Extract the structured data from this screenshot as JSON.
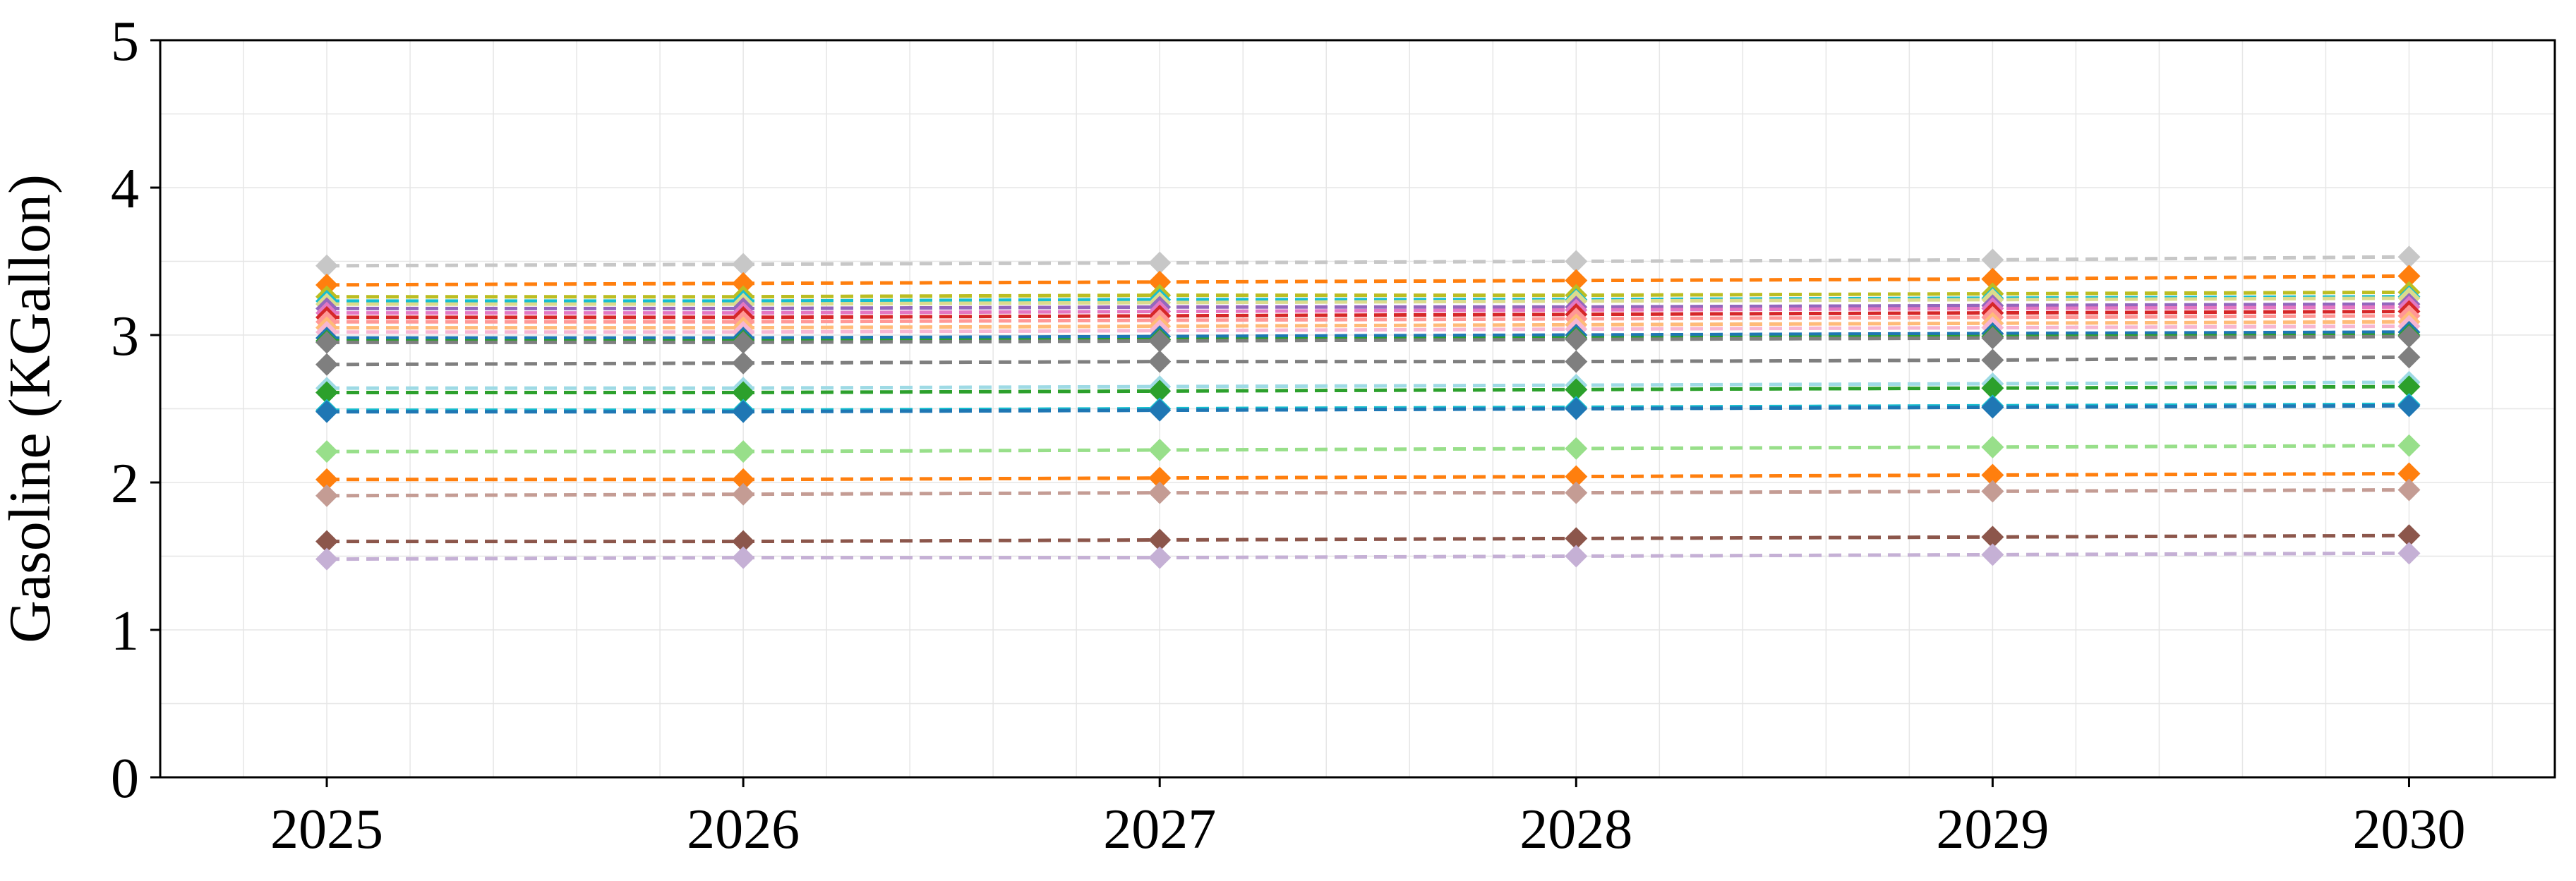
{
  "chart_data": {
    "type": "line",
    "title": "",
    "xlabel": "",
    "ylabel": "Gasoline (KGallon)",
    "x": [
      2025,
      2026,
      2027,
      2028,
      2029,
      2030
    ],
    "xlim": [
      2024.6,
      2030.35
    ],
    "ylim": [
      0,
      5
    ],
    "x_ticks": [
      "2025",
      "2026",
      "2027",
      "2028",
      "2029",
      "2030"
    ],
    "y_ticks": [
      "0",
      "1",
      "2",
      "3",
      "4",
      "5"
    ],
    "grid": true,
    "line_style": "dashed",
    "marker": "diamond",
    "series": [
      {
        "color": "#c7c7c7",
        "values": [
          3.47,
          3.48,
          3.49,
          3.5,
          3.51,
          3.53
        ]
      },
      {
        "color": "#ff7f0e",
        "values": [
          3.34,
          3.35,
          3.36,
          3.37,
          3.38,
          3.4
        ]
      },
      {
        "color": "#bcbd22",
        "values": [
          3.26,
          3.26,
          3.27,
          3.27,
          3.28,
          3.29
        ]
      },
      {
        "color": "#17becf",
        "values": [
          3.23,
          3.23,
          3.24,
          3.24,
          3.25,
          3.26
        ]
      },
      {
        "color": "#dbdb8d",
        "values": [
          3.21,
          3.21,
          3.22,
          3.23,
          3.24,
          3.25
        ]
      },
      {
        "color": "#9467bd",
        "values": [
          3.18,
          3.18,
          3.19,
          3.19,
          3.2,
          3.21
        ]
      },
      {
        "color": "#e377c2",
        "values": [
          3.15,
          3.15,
          3.16,
          3.17,
          3.18,
          3.19
        ]
      },
      {
        "color": "#d62728",
        "values": [
          3.12,
          3.12,
          3.13,
          3.14,
          3.15,
          3.16
        ]
      },
      {
        "color": "#ff9896",
        "values": [
          3.09,
          3.09,
          3.1,
          3.11,
          3.12,
          3.13
        ]
      },
      {
        "color": "#ffbb78",
        "values": [
          3.05,
          3.05,
          3.06,
          3.07,
          3.08,
          3.09
        ]
      },
      {
        "color": "#f7b6d2",
        "values": [
          3.02,
          3.02,
          3.03,
          3.04,
          3.05,
          3.06
        ]
      },
      {
        "color": "#1f77b4",
        "values": [
          2.98,
          2.98,
          2.99,
          3.0,
          3.01,
          3.02
        ]
      },
      {
        "color": "#2ca02c",
        "values": [
          2.96,
          2.96,
          2.97,
          2.98,
          2.99,
          3.0
        ]
      },
      {
        "color": "#7f7f7f",
        "values": [
          2.95,
          2.95,
          2.96,
          2.97,
          2.98,
          2.99
        ]
      },
      {
        "color": "#7f7f7f",
        "values": [
          2.8,
          2.81,
          2.82,
          2.82,
          2.83,
          2.85
        ]
      },
      {
        "color": "#9edae5",
        "values": [
          2.64,
          2.64,
          2.65,
          2.66,
          2.67,
          2.68
        ]
      },
      {
        "color": "#2ca02c",
        "values": [
          2.61,
          2.61,
          2.62,
          2.63,
          2.64,
          2.65
        ]
      },
      {
        "color": "#17becf",
        "values": [
          2.49,
          2.49,
          2.5,
          2.51,
          2.52,
          2.53
        ]
      },
      {
        "color": "#1f77b4",
        "values": [
          2.48,
          2.48,
          2.49,
          2.5,
          2.51,
          2.52
        ]
      },
      {
        "color": "#98df8a",
        "values": [
          2.21,
          2.21,
          2.22,
          2.23,
          2.24,
          2.25
        ]
      },
      {
        "color": "#ff7f0e",
        "values": [
          2.02,
          2.02,
          2.03,
          2.04,
          2.05,
          2.06
        ]
      },
      {
        "color": "#c49c94",
        "values": [
          1.91,
          1.92,
          1.93,
          1.93,
          1.94,
          1.95
        ]
      },
      {
        "color": "#8c564b",
        "values": [
          1.6,
          1.6,
          1.61,
          1.62,
          1.63,
          1.64
        ]
      },
      {
        "color": "#c5b0d5",
        "values": [
          1.48,
          1.49,
          1.49,
          1.5,
          1.51,
          1.52
        ]
      }
    ]
  }
}
